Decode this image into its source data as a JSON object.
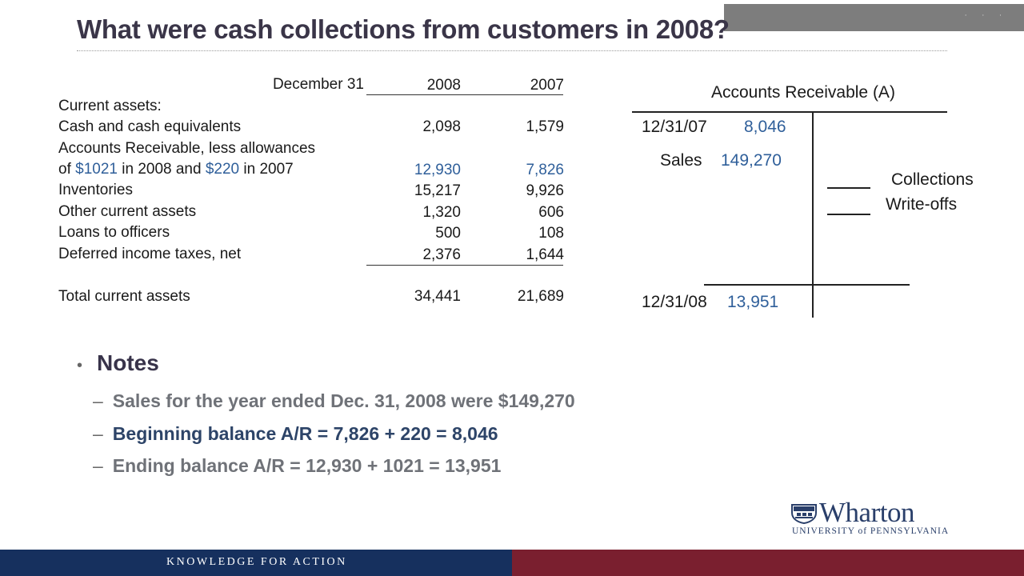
{
  "slide": {
    "title": "What were cash collections from customers in 2008?"
  },
  "balance_sheet": {
    "header_label": "December 31",
    "year_1": "2008",
    "year_2": "2007",
    "section_label": "Current assets:",
    "rows": [
      {
        "label": "Cash and cash equivalents",
        "v2008": "2,098",
        "v2007": "1,579"
      },
      {
        "label_line1": "Accounts Receivable, less allowances",
        "label_prefix": "of ",
        "label_amt1": "$1021",
        "label_mid": " in 2008 and ",
        "label_amt2": "$220",
        "label_suffix": " in 2007",
        "v2008": "12,930",
        "v2007": "7,826"
      },
      {
        "label": "Inventories",
        "v2008": "15,217",
        "v2007": "9,926"
      },
      {
        "label": "Other current assets",
        "v2008": "1,320",
        "v2007": "606"
      },
      {
        "label": "Loans to officers",
        "v2008": "500",
        "v2007": "108"
      },
      {
        "label": "Deferred income taxes, net",
        "v2008": "2,376",
        "v2007": "1,644"
      }
    ],
    "total": {
      "label": "Total current assets",
      "v2008": "34,441",
      "v2007": "21,689"
    }
  },
  "t_account": {
    "title": "Accounts Receivable (A)",
    "begin_date": "12/31/07",
    "begin_value": "8,046",
    "sales_label": "Sales",
    "sales_value": "149,270",
    "credit_items": [
      "Collections",
      "Write-offs"
    ],
    "end_date": "12/31/08",
    "end_value": "13,951"
  },
  "notes": {
    "bullet": "•",
    "dash": "–",
    "heading": "Notes",
    "items": [
      "Sales for the year ended Dec. 31, 2008 were $149,270",
      "Beginning balance A/R = 7,826 + 220 = 8,046",
      "Ending balance A/R = 12,930 + 1021 = 13,951"
    ]
  },
  "logo": {
    "name": "Wharton",
    "subtitle": "UNIVERSITY of PENNSYLVANIA"
  },
  "footer": {
    "tagline": "KNOWLEDGE FOR ACTION"
  },
  "colors": {
    "navy": "#16305e",
    "maroon": "#7a1f2f",
    "title": "#3a3548",
    "highlight_blue": "#2f5f9a"
  },
  "icons": [
    "penn-shield-icon"
  ]
}
